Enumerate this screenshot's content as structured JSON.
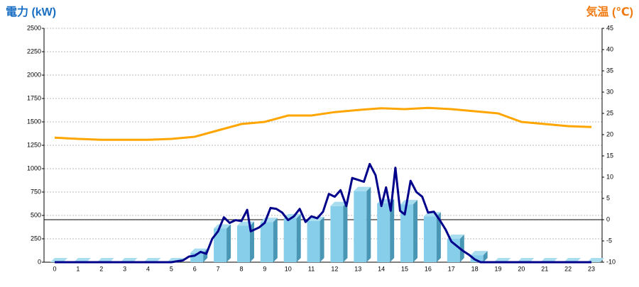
{
  "chart_data": {
    "type": "bar-line",
    "ylabel": "電力 (kW)",
    "y2label": "気温 (℃)",
    "categories": [
      "0",
      "1",
      "2",
      "3",
      "4",
      "5",
      "6",
      "7",
      "8",
      "9",
      "10",
      "11",
      "12",
      "13",
      "14",
      "15",
      "16",
      "17",
      "18",
      "19",
      "20",
      "21",
      "22",
      "23"
    ],
    "ylim": [
      0,
      2500
    ],
    "yticks": [
      0,
      250,
      500,
      750,
      1000,
      1250,
      1500,
      1750,
      2000,
      2250,
      2500
    ],
    "y2lim": [
      -10,
      45
    ],
    "y2ticks": [
      -10,
      -5,
      0,
      5,
      10,
      15,
      20,
      25,
      30,
      35,
      40,
      45
    ],
    "y2_reference": 0,
    "grid": true,
    "bars": {
      "color": "#87ceeb",
      "values": [
        0,
        0,
        0,
        0,
        0,
        0,
        100,
        360,
        390,
        430,
        470,
        440,
        600,
        760,
        630,
        620,
        490,
        250,
        75,
        0,
        0,
        0,
        0,
        0
      ]
    },
    "temperature": {
      "color": "#ffa500",
      "axis": "y2",
      "values": [
        19.3,
        19,
        18.8,
        18.8,
        18.8,
        19,
        19.5,
        21,
        22.5,
        23,
        24.5,
        24.5,
        25.3,
        25.8,
        26.2,
        26,
        26.3,
        26,
        25.5,
        25,
        23,
        22.5,
        22,
        21.8
      ]
    },
    "power_line": {
      "color": "#00008b",
      "x": [
        0,
        5,
        5.5,
        5.75,
        6,
        6.25,
        6.5,
        6.75,
        7,
        7.25,
        7.5,
        7.75,
        8,
        8.25,
        8.4,
        8.75,
        9,
        9.25,
        9.5,
        9.75,
        10,
        10.25,
        10.5,
        10.75,
        11,
        11.25,
        11.5,
        11.75,
        12,
        12.25,
        12.5,
        12.75,
        13,
        13.25,
        13.5,
        13.75,
        14,
        14.2,
        14.4,
        14.6,
        14.8,
        15,
        15.25,
        15.5,
        15.75,
        16,
        16.25,
        16.5,
        16.75,
        17,
        17.25,
        17.5,
        17.75,
        18,
        18.25,
        19,
        23
      ],
      "values": [
        0,
        0,
        20,
        60,
        70,
        110,
        90,
        250,
        330,
        480,
        420,
        450,
        440,
        560,
        330,
        370,
        420,
        580,
        570,
        530,
        450,
        490,
        570,
        430,
        490,
        470,
        540,
        730,
        700,
        770,
        600,
        900,
        880,
        860,
        1050,
        930,
        600,
        800,
        550,
        1010,
        550,
        510,
        870,
        750,
        700,
        530,
        540,
        450,
        350,
        220,
        170,
        120,
        80,
        30,
        0,
        0,
        0
      ]
    }
  }
}
